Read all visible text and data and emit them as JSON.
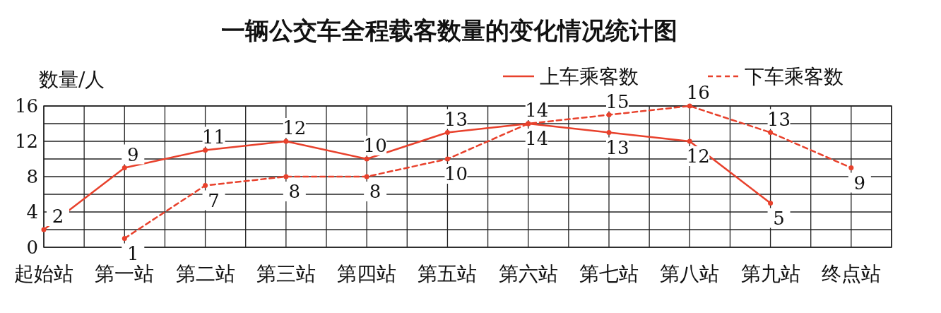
{
  "chart_data": {
    "type": "line",
    "title": "一辆公交车全程载客数量的变化情况统计图",
    "ylabel": "数量/人",
    "categories": [
      "起始站",
      "第一站",
      "第二站",
      "第三站",
      "第四站",
      "第五站",
      "第六站",
      "第七站",
      "第八站",
      "第九站",
      "终点站"
    ],
    "series": [
      {
        "name": "上车乘客数",
        "color": "#e8412c",
        "line_style": "solid",
        "values": [
          2,
          9,
          11,
          12,
          10,
          13,
          14,
          13,
          12,
          5,
          null
        ]
      },
      {
        "name": "下车乘客数",
        "color": "#e8412c",
        "line_style": "dashed",
        "values": [
          null,
          1,
          7,
          8,
          8,
          10,
          14,
          15,
          16,
          13,
          9
        ]
      }
    ],
    "ylim": [
      0,
      16
    ],
    "yticks": [
      0,
      4,
      8,
      12,
      16
    ],
    "grid": true,
    "legend": "top right",
    "marker": "circle",
    "data_labels": true
  }
}
